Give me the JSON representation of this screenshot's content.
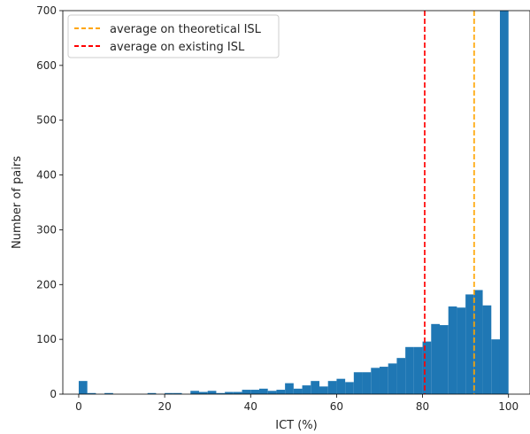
{
  "chart_data": {
    "type": "bar",
    "subtype": "histogram",
    "title": "",
    "xlabel": "ICT (%)",
    "ylabel": "Number of pairs",
    "xlim": [
      -3.7,
      105
    ],
    "ylim": [
      0,
      700
    ],
    "x_ticks": [
      "0",
      "20",
      "40",
      "60",
      "80",
      "100"
    ],
    "y_ticks": [
      "0",
      "100",
      "200",
      "300",
      "400",
      "500",
      "600",
      "700"
    ],
    "bin_width": 2,
    "bins_start": [
      0,
      2,
      4,
      6,
      8,
      10,
      12,
      14,
      16,
      18,
      20,
      22,
      24,
      26,
      28,
      30,
      32,
      34,
      36,
      38,
      40,
      42,
      44,
      46,
      48,
      50,
      52,
      54,
      56,
      58,
      60,
      62,
      64,
      66,
      68,
      70,
      72,
      74,
      76,
      78,
      80,
      82,
      84,
      86,
      88,
      90,
      92,
      94,
      96,
      98
    ],
    "values": [
      24,
      2,
      0,
      2,
      0,
      0,
      0,
      0,
      2,
      0,
      2,
      2,
      0,
      6,
      4,
      6,
      2,
      4,
      4,
      8,
      8,
      10,
      6,
      8,
      20,
      10,
      16,
      24,
      14,
      24,
      28,
      22,
      40,
      40,
      48,
      50,
      56,
      66,
      86,
      86,
      96,
      128,
      126,
      160,
      158,
      182,
      190,
      162,
      100,
      700
    ],
    "bar_color": "#1f77b4",
    "grid": false,
    "legend_position": "upper-left",
    "reference_lines": [
      {
        "name": "average on theoretical ISL",
        "x": 92,
        "color": "#ffa500",
        "style": "dashed"
      },
      {
        "name": "average on existing ISL",
        "x": 80.5,
        "color": "#ff0000",
        "style": "dashed"
      }
    ]
  }
}
